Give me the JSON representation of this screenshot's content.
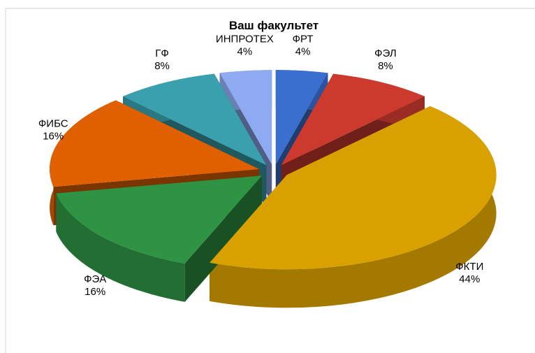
{
  "chart_data": {
    "type": "pie",
    "title": "Ваш факультет",
    "categories": [
      "ФРТ",
      "ФЭЛ",
      "ФКТИ",
      "ФЭА",
      "ФИБС",
      "ГФ",
      "ИНПРОТЕХ"
    ],
    "values": [
      4,
      8,
      44,
      16,
      16,
      8,
      4
    ],
    "value_labels": [
      "4%",
      "8%",
      "44%",
      "16%",
      "16%",
      "8%",
      "4%"
    ],
    "colors": [
      "#3a6fd0",
      "#cc3a2e",
      "#d9a100",
      "#2e9444",
      "#e06000",
      "#3aa0ad",
      "#8eaaf0"
    ]
  }
}
